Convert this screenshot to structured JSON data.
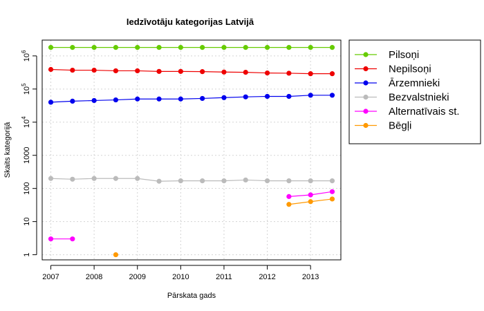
{
  "chart_data": {
    "type": "line",
    "title": "Iedzīvotāju kategorijas Latvijā",
    "xlabel": "Pārskata gads",
    "ylabel": "Skaits kategorijā",
    "y_scale": "log",
    "xlim": [
      2006.8,
      2013.7
    ],
    "ylim": [
      0.7,
      3000000
    ],
    "x_ticks": [
      {
        "value": 2007,
        "label": "2007"
      },
      {
        "value": 2008,
        "label": "2008"
      },
      {
        "value": 2009,
        "label": "2009"
      },
      {
        "value": 2010,
        "label": "2010"
      },
      {
        "value": 2011,
        "label": "2011"
      },
      {
        "value": 2012,
        "label": "2012"
      },
      {
        "value": 2013,
        "label": "2013"
      }
    ],
    "y_ticks": [
      {
        "value": 1,
        "base": "1",
        "exp": ""
      },
      {
        "value": 10,
        "base": "10",
        "exp": ""
      },
      {
        "value": 100,
        "base": "100",
        "exp": ""
      },
      {
        "value": 1000,
        "base": "1000",
        "exp": ""
      },
      {
        "value": 10000,
        "base": "10",
        "exp": "4"
      },
      {
        "value": 100000,
        "base": "10",
        "exp": "5"
      },
      {
        "value": 1000000,
        "base": "10",
        "exp": "6"
      }
    ],
    "grid": true,
    "legend_position": "right",
    "series": [
      {
        "name": "Pilsoņi",
        "color": "#66cc00",
        "x": [
          2007,
          2007.5,
          2008,
          2008.5,
          2009,
          2009.5,
          2010,
          2010.5,
          2011,
          2011.5,
          2012,
          2012.5,
          2013,
          2013.5
        ],
        "y": [
          1800000,
          1800000,
          1800000,
          1800000,
          1800000,
          1800000,
          1800000,
          1800000,
          1800000,
          1800000,
          1800000,
          1800000,
          1800000,
          1800000
        ]
      },
      {
        "name": "Nepilsoņi",
        "color": "#ee0000",
        "x": [
          2007,
          2007.5,
          2008,
          2008.5,
          2009,
          2009.5,
          2010,
          2010.5,
          2011,
          2011.5,
          2012,
          2012.5,
          2013,
          2013.5
        ],
        "y": [
          390000,
          370000,
          370000,
          355000,
          355000,
          340000,
          340000,
          335000,
          325000,
          320000,
          305000,
          300000,
          290000,
          290000
        ]
      },
      {
        "name": "Ārzemnieki",
        "color": "#0000ee",
        "x": [
          2007,
          2007.5,
          2008,
          2008.5,
          2009,
          2009.5,
          2010,
          2010.5,
          2011,
          2011.5,
          2012,
          2012.5,
          2013,
          2013.5
        ],
        "y": [
          40000,
          43000,
          45000,
          47000,
          50000,
          50000,
          50000,
          52000,
          55000,
          58000,
          60000,
          60000,
          65000,
          65000
        ]
      },
      {
        "name": "Bezvalstnieki",
        "color": "#bbbbbb",
        "x": [
          2007,
          2007.5,
          2008,
          2008.5,
          2009,
          2009.5,
          2010,
          2010.5,
          2011,
          2011.5,
          2012,
          2012.5,
          2013,
          2013.5
        ],
        "y": [
          200,
          190,
          200,
          200,
          200,
          165,
          170,
          170,
          170,
          180,
          170,
          170,
          170,
          170
        ]
      },
      {
        "name": "Alternatīvais st.",
        "color": "#ff00ff",
        "segments": [
          {
            "x": [
              2007,
              2007.5
            ],
            "y": [
              3,
              3
            ]
          },
          {
            "x": [
              2012.5,
              2013,
              2013.5
            ],
            "y": [
              57,
              64,
              80
            ]
          }
        ]
      },
      {
        "name": "Bēgļi",
        "color": "#ff9900",
        "segments": [
          {
            "x": [
              2008.5
            ],
            "y": [
              1
            ]
          },
          {
            "x": [
              2012.5,
              2013,
              2013.5
            ],
            "y": [
              33,
              40,
              48
            ]
          }
        ]
      }
    ]
  }
}
